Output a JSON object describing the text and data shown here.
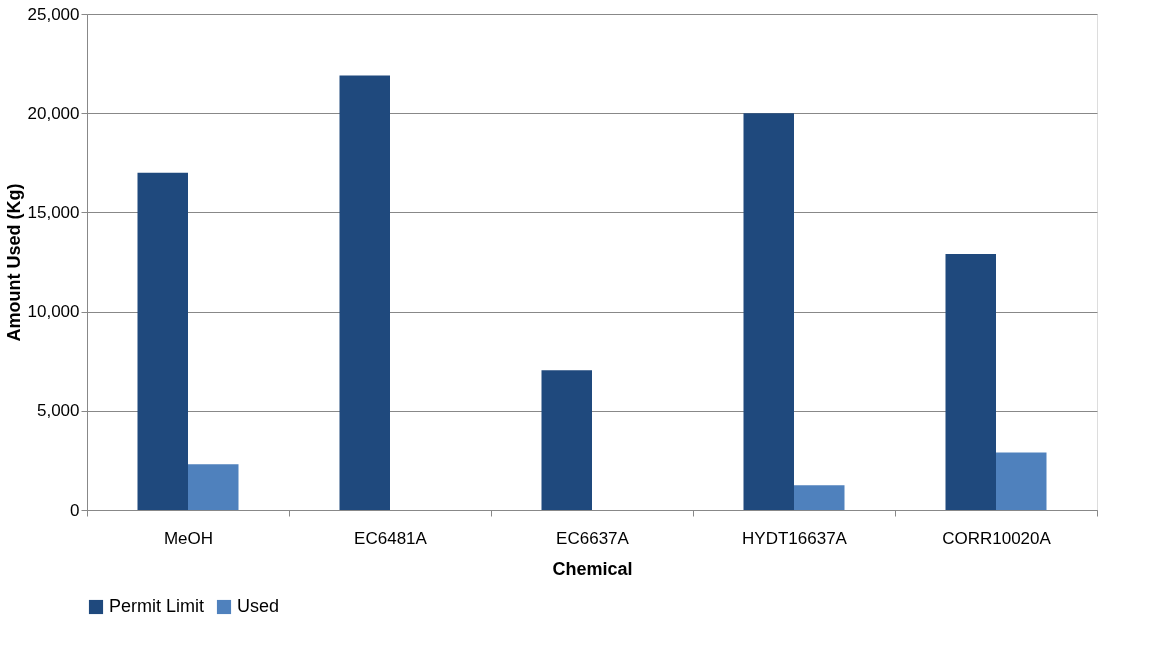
{
  "chart_data": {
    "type": "bar",
    "xlabel": "Chemical",
    "ylabel": "Amount Used (Kg)",
    "categories": [
      "MeOH",
      "EC6481A",
      "EC6637A",
      "HYDT16637A",
      "CORR10020A"
    ],
    "series": [
      {
        "name": "Permit Limit",
        "color": "#1f497d",
        "values": [
          17000,
          21900,
          7050,
          20000,
          12900
        ]
      },
      {
        "name": "Used",
        "color": "#4f81bd",
        "values": [
          2300,
          0,
          0,
          1250,
          2900
        ]
      }
    ],
    "ylim": [
      0,
      25000
    ],
    "yticks": [
      {
        "value": 0,
        "label": "0"
      },
      {
        "value": 5000,
        "label": "5,000"
      },
      {
        "value": 10000,
        "label": "10,000"
      },
      {
        "value": 15000,
        "label": "15,000"
      },
      {
        "value": 20000,
        "label": "20,000"
      },
      {
        "value": 25000,
        "label": "25,000"
      }
    ],
    "grid": "y",
    "legend": "bottom"
  }
}
